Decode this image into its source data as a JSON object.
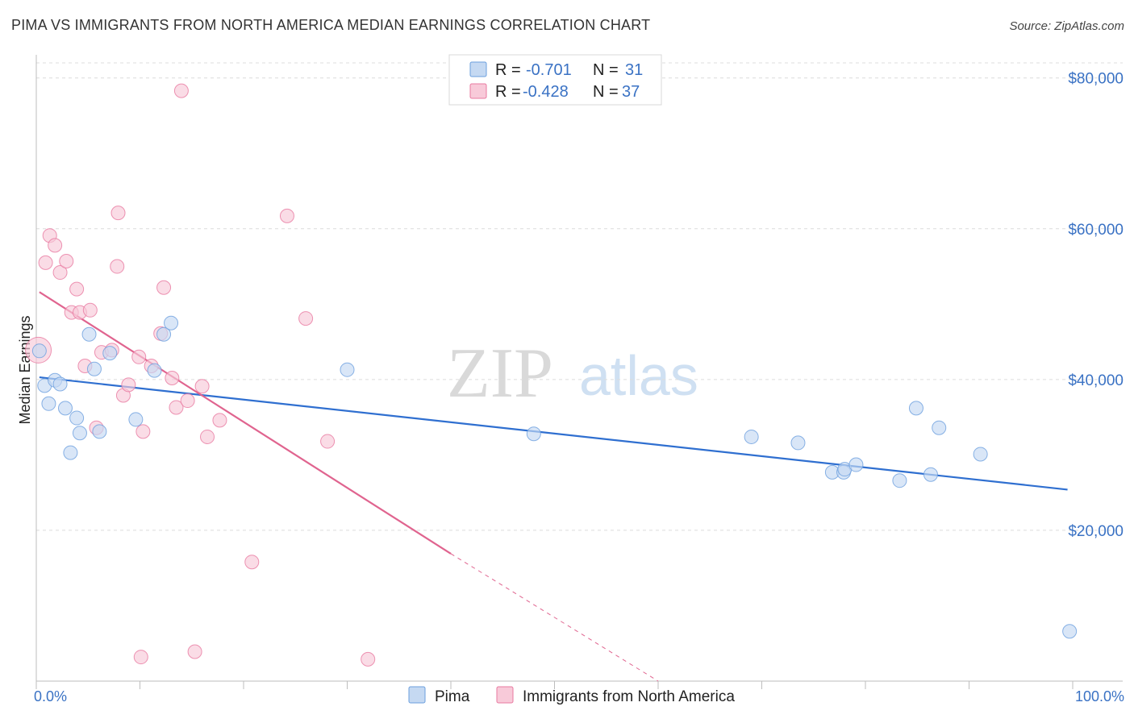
{
  "header": {
    "title": "PIMA VS IMMIGRANTS FROM NORTH AMERICA MEDIAN EARNINGS CORRELATION CHART",
    "source": "Source: ZipAtlas.com"
  },
  "watermark": {
    "zip": "ZIP",
    "atlas": "atlas"
  },
  "legend_top": [
    {
      "r_label": "R =",
      "r_value": "-0.701",
      "n_label": "N =",
      "n_value": "31"
    },
    {
      "r_label": "R =",
      "r_value": "-0.428",
      "n_label": "N =",
      "n_value": "37"
    }
  ],
  "legend_bottom": [
    "Pima",
    "Immigrants from North America"
  ],
  "colors": {
    "pima": "#6b9fde",
    "pima_fill": "#c5d9f2",
    "immigrants": "#e879a0",
    "immigrants_fill": "#f8cad9",
    "pima_line": "#2f6fd0",
    "immigrants_line": "#e0648f",
    "value_text": "#3a72c4"
  },
  "chart_data": {
    "type": "scatter",
    "title": "PIMA VS IMMIGRANTS FROM NORTH AMERICA MEDIAN EARNINGS CORRELATION CHART",
    "xlabel": "",
    "ylabel": "Median Earnings",
    "xlim": [
      0,
      100
    ],
    "ylim": [
      0,
      82000
    ],
    "x_tick_labels": [
      "0.0%",
      "100.0%"
    ],
    "y_ticks": [
      20000,
      40000,
      60000,
      80000
    ],
    "y_tick_labels": [
      "$20,000",
      "$40,000",
      "$60,000",
      "$80,000"
    ],
    "grid": true,
    "series": [
      {
        "name": "Pima",
        "points": [
          [
            0.3,
            43800
          ],
          [
            0.8,
            39200
          ],
          [
            1.2,
            36800
          ],
          [
            1.8,
            39900
          ],
          [
            2.3,
            39400
          ],
          [
            2.8,
            36200
          ],
          [
            3.3,
            30300
          ],
          [
            3.9,
            34900
          ],
          [
            4.2,
            32900
          ],
          [
            5.1,
            46000
          ],
          [
            5.6,
            41400
          ],
          [
            6.1,
            33100
          ],
          [
            7.1,
            43500
          ],
          [
            9.6,
            34700
          ],
          [
            11.4,
            41200
          ],
          [
            12.3,
            46000
          ],
          [
            13.0,
            47500
          ],
          [
            30.0,
            41300
          ],
          [
            48.0,
            32800
          ],
          [
            69.0,
            32400
          ],
          [
            73.5,
            31600
          ],
          [
            76.8,
            27700
          ],
          [
            77.9,
            27700
          ],
          [
            78.0,
            28100
          ],
          [
            79.1,
            28700
          ],
          [
            83.3,
            26600
          ],
          [
            84.9,
            36200
          ],
          [
            86.3,
            27400
          ],
          [
            87.1,
            33600
          ],
          [
            91.1,
            30100
          ],
          [
            99.7,
            6600
          ]
        ],
        "trend": {
          "x0": 0.3,
          "y0": 40300,
          "x1": 99.5,
          "y1": 25400
        }
      },
      {
        "name": "Immigrants from North America",
        "points": [
          [
            0.2,
            43900
          ],
          [
            0.9,
            55500
          ],
          [
            1.3,
            59100
          ],
          [
            1.8,
            57800
          ],
          [
            2.3,
            54200
          ],
          [
            2.9,
            55700
          ],
          [
            3.4,
            48900
          ],
          [
            3.9,
            52000
          ],
          [
            4.2,
            48900
          ],
          [
            4.7,
            41800
          ],
          [
            5.2,
            49200
          ],
          [
            5.8,
            33600
          ],
          [
            6.3,
            43600
          ],
          [
            7.3,
            43900
          ],
          [
            7.8,
            55000
          ],
          [
            7.9,
            62100
          ],
          [
            8.4,
            37900
          ],
          [
            8.9,
            39300
          ],
          [
            9.9,
            43000
          ],
          [
            10.1,
            3200
          ],
          [
            10.3,
            33100
          ],
          [
            11.1,
            41800
          ],
          [
            12.0,
            46100
          ],
          [
            12.3,
            52200
          ],
          [
            13.1,
            40200
          ],
          [
            13.5,
            36300
          ],
          [
            14.0,
            78300
          ],
          [
            14.6,
            37200
          ],
          [
            15.3,
            3900
          ],
          [
            16.0,
            39100
          ],
          [
            16.5,
            32400
          ],
          [
            17.7,
            34600
          ],
          [
            20.8,
            15800
          ],
          [
            24.2,
            61700
          ],
          [
            26.0,
            48100
          ],
          [
            28.1,
            31800
          ],
          [
            32.0,
            2900
          ]
        ],
        "trend": {
          "x0": 0.3,
          "y0": 51600,
          "x1": 40.0,
          "y1": 16900
        },
        "trend_dashed": {
          "x0": 40.0,
          "y0": 16900,
          "x1": 60.0,
          "y1": 0
        }
      }
    ]
  }
}
